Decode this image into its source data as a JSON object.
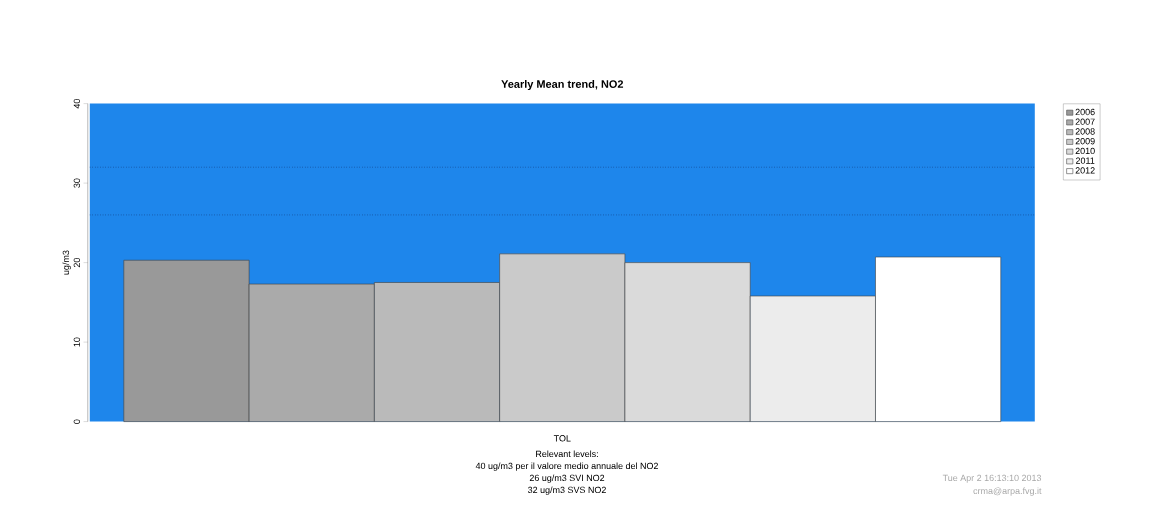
{
  "chart_data": {
    "type": "bar",
    "title": "Yearly Mean trend, NO2",
    "ylabel": "ug/m3",
    "categories": [
      "TOL"
    ],
    "series": [
      {
        "name": "2006",
        "color": "#999999",
        "values": [
          20.3
        ]
      },
      {
        "name": "2007",
        "color": "#aaaaaa",
        "values": [
          17.3
        ]
      },
      {
        "name": "2008",
        "color": "#bababa",
        "values": [
          17.5
        ]
      },
      {
        "name": "2009",
        "color": "#cacaca",
        "values": [
          21.1
        ]
      },
      {
        "name": "2010",
        "color": "#dadada",
        "values": [
          20.0
        ]
      },
      {
        "name": "2011",
        "color": "#ececec",
        "values": [
          15.8
        ]
      },
      {
        "name": "2012",
        "color": "#ffffff",
        "values": [
          20.7
        ]
      }
    ],
    "ylim": [
      0,
      40
    ],
    "yticks": [
      0,
      10,
      20,
      30,
      40
    ],
    "bands": [
      {
        "axis": "y",
        "from": 0,
        "to": 40,
        "color": "#1e86eb"
      }
    ],
    "ref_lines": [
      {
        "axis": "y",
        "value": 26,
        "color": "#0a1a4e",
        "line_style": "dotted"
      },
      {
        "axis": "y",
        "value": 32,
        "color": "#0a1a4e",
        "line_style": "dotted"
      }
    ],
    "legend": "top right",
    "grid": false,
    "annotations": [
      "Relevant levels:",
      "40 ug/m3 per il valore medio annuale del NO2",
      "26 ug/m3 SVI NO2",
      "32 ug/m3 SVS NO2",
      "Tue Apr  2 16:13:10 2013",
      "crma@arpa.fvg.it"
    ]
  }
}
